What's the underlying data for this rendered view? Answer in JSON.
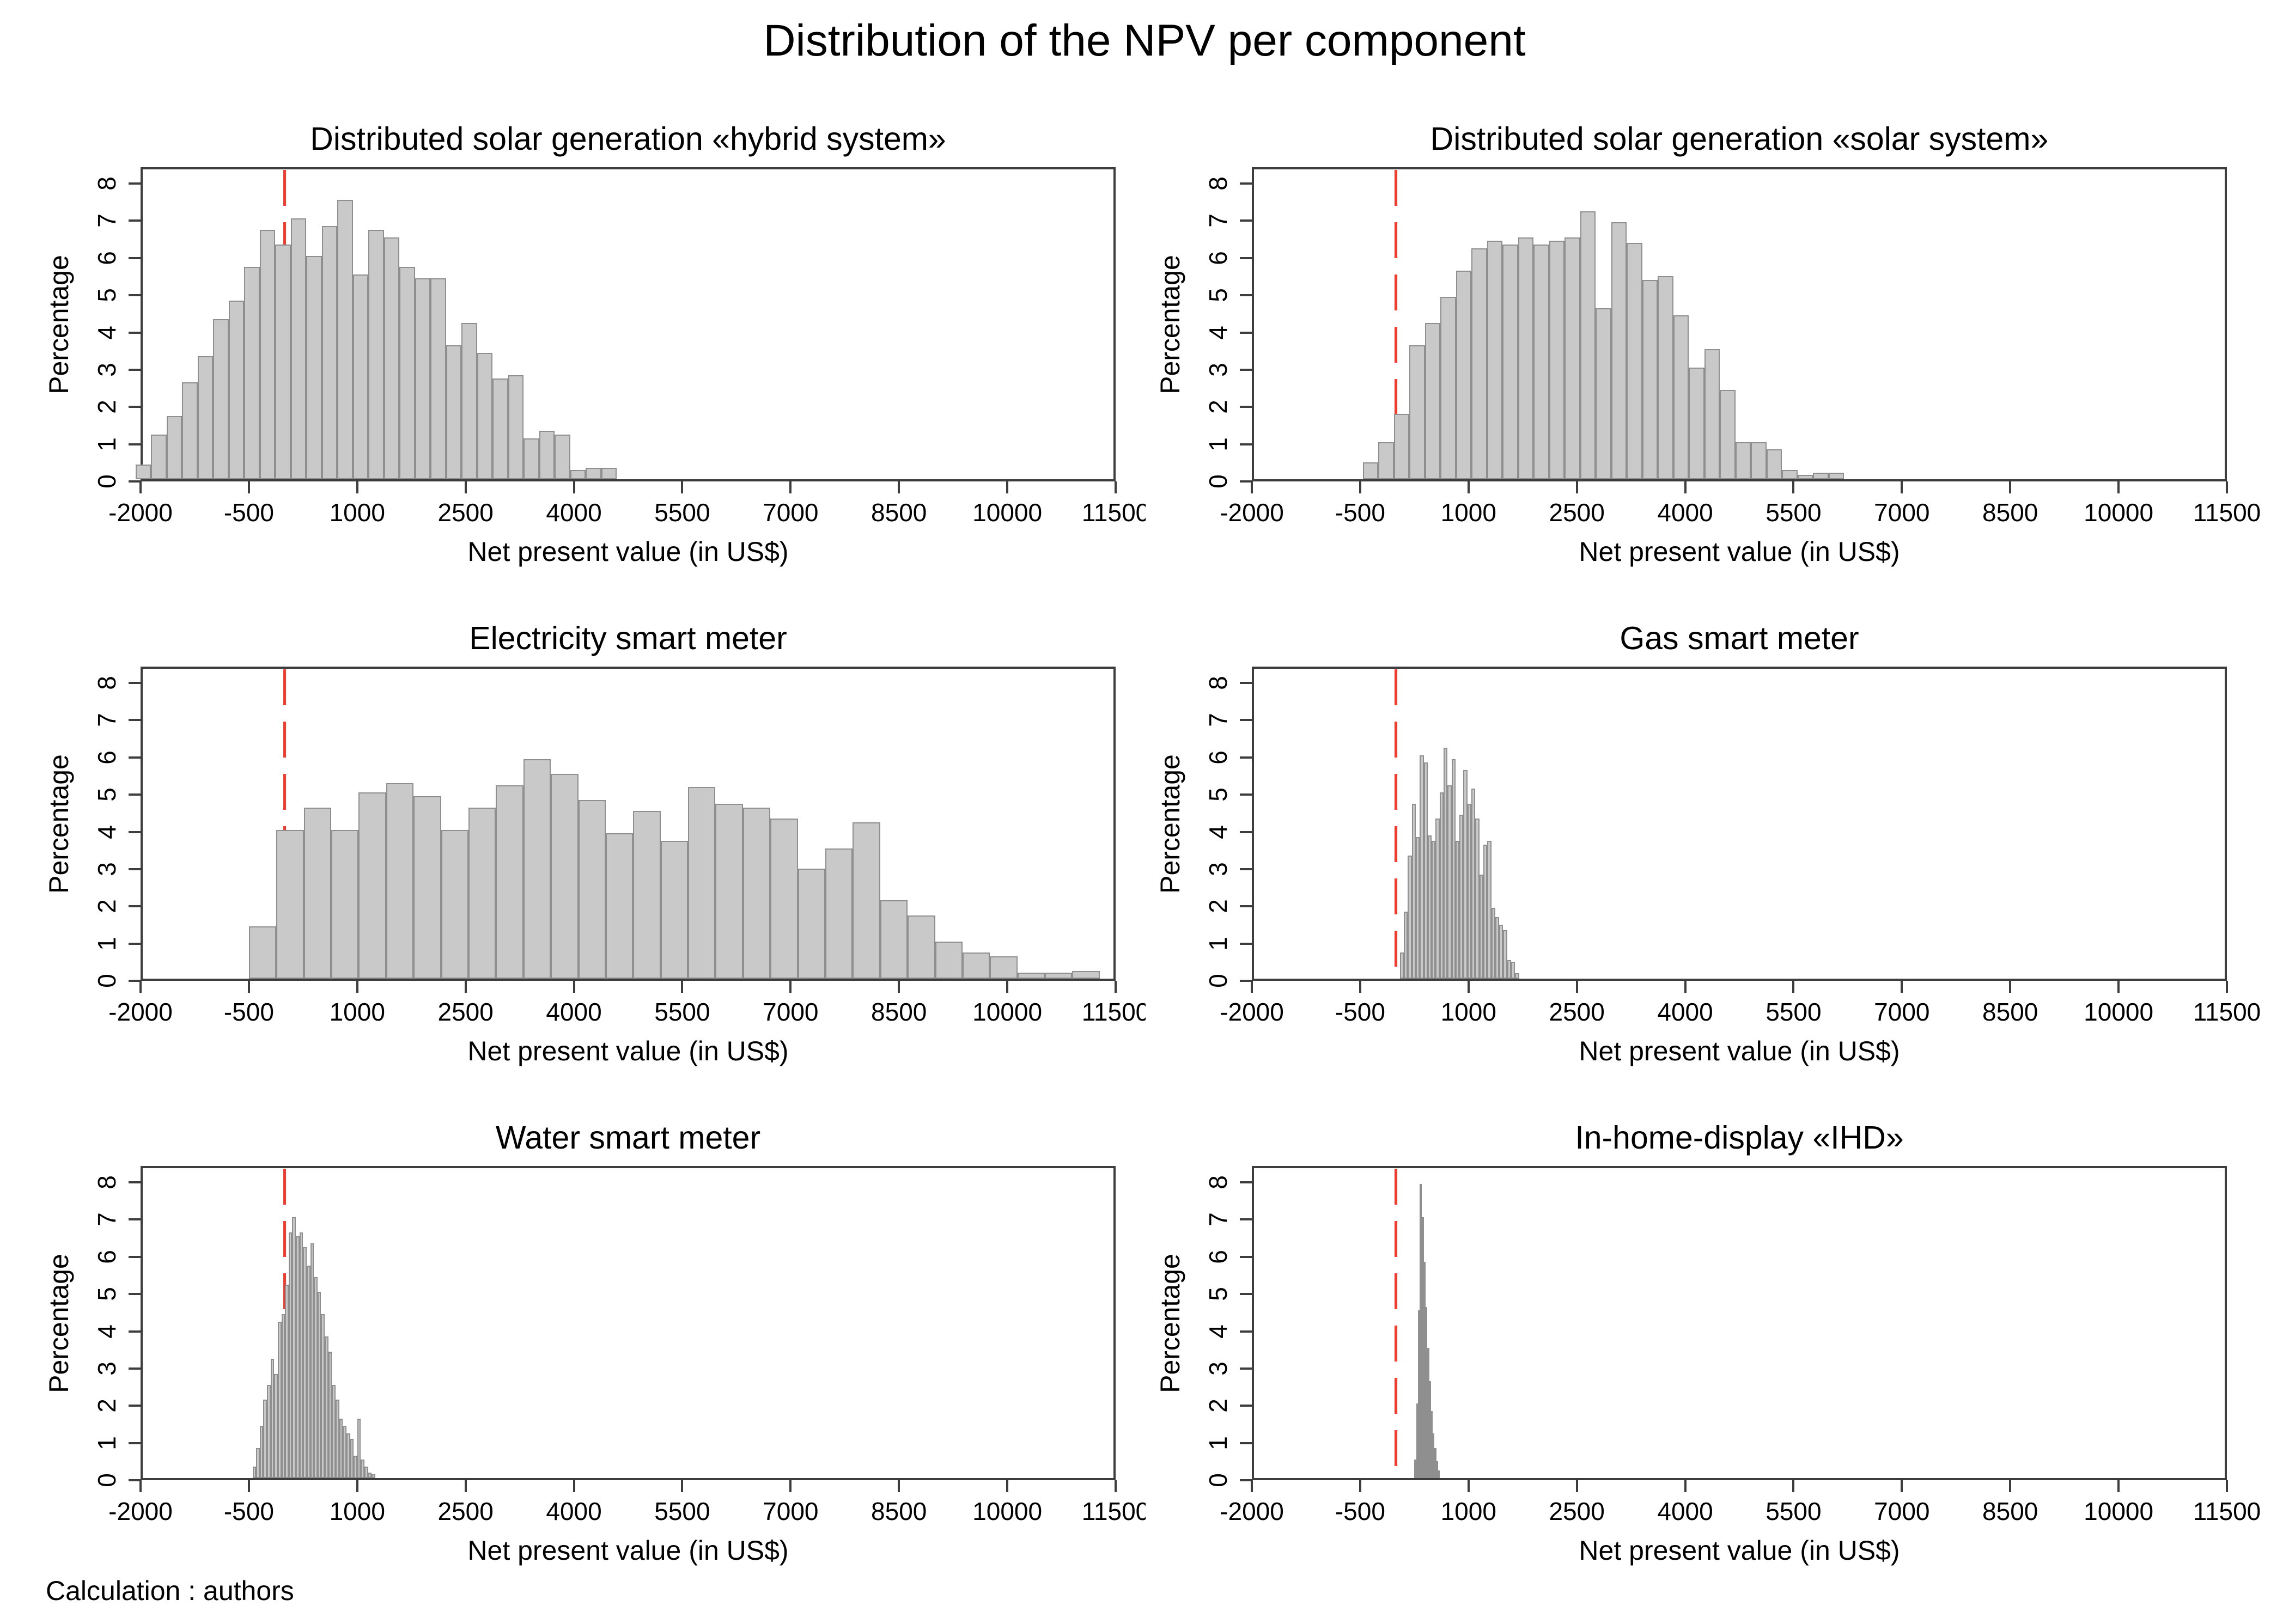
{
  "page": {
    "title": "Distribution of the NPV per component",
    "footer": "Calculation : authors"
  },
  "axes": {
    "x_label": "Net present value (in US$)",
    "y_label": "Percentage",
    "x_ticks": [
      -2000,
      -500,
      1000,
      2500,
      4000,
      5500,
      7000,
      8500,
      10000,
      11500
    ],
    "x_range": [
      -2000,
      11500
    ],
    "y_ticks": [
      0,
      1,
      2,
      3,
      4,
      5,
      6,
      7,
      8
    ],
    "y_range": [
      0,
      8.44
    ],
    "grid": "off",
    "legend": "none",
    "ref_line_x": 0,
    "ref_line_color": "#f83a2c",
    "ref_line_style": "dashed",
    "bar_fill": "#c9c9c9",
    "bar_border": "#8f8f8f",
    "frame_color": "#3d3d3d"
  },
  "chart_data": [
    {
      "type": "bar",
      "subtype": "histogram",
      "title": "Distributed solar generation «hybrid system»",
      "xlabel": "Net present value (in US$)",
      "ylabel": "Percentage",
      "ref_line_x": 0,
      "bin_start": -2070,
      "bin_width": 215,
      "values": [
        0.4,
        1.2,
        1.7,
        2.6,
        3.3,
        4.3,
        4.8,
        5.7,
        6.7,
        6.3,
        7.0,
        6.0,
        6.8,
        7.5,
        5.5,
        6.7,
        6.5,
        5.7,
        5.4,
        5.4,
        3.6,
        4.2,
        3.4,
        2.7,
        2.8,
        1.1,
        1.3,
        1.2,
        0.25,
        0.3,
        0.3
      ],
      "clip_last_x_label": true
    },
    {
      "type": "bar",
      "subtype": "histogram",
      "title": "Distributed solar generation «solar system»",
      "xlabel": "Net present value (in US$)",
      "ylabel": "Percentage",
      "ref_line_x": 0,
      "bin_start": -465,
      "bin_width": 215,
      "values": [
        0.45,
        1.0,
        1.75,
        3.6,
        4.2,
        4.9,
        5.6,
        6.2,
        6.4,
        6.3,
        6.5,
        6.3,
        6.4,
        6.5,
        7.2,
        4.6,
        6.9,
        6.35,
        5.35,
        5.45,
        4.4,
        3.0,
        3.5,
        2.4,
        1.0,
        1.0,
        0.8,
        0.25,
        0.12,
        0.17,
        0.17
      ],
      "clip_last_x_label": false
    },
    {
      "type": "bar",
      "subtype": "histogram",
      "title": "Electricity smart meter",
      "xlabel": "Net present value (in US$)",
      "ylabel": "Percentage",
      "ref_line_x": 0,
      "bin_start": -500,
      "bin_width": 380,
      "values": [
        1.4,
        4.0,
        4.6,
        4.0,
        5.0,
        5.25,
        4.9,
        4.0,
        4.6,
        5.2,
        5.9,
        5.5,
        4.8,
        3.9,
        4.5,
        3.7,
        5.15,
        4.7,
        4.6,
        4.3,
        2.95,
        3.5,
        4.2,
        2.1,
        1.7,
        1.0,
        0.7,
        0.6,
        0.16,
        0.16,
        0.2
      ],
      "clip_last_x_label": true
    },
    {
      "type": "bar",
      "subtype": "histogram",
      "title": "Gas smart meter",
      "xlabel": "Net present value (in US$)",
      "ylabel": "Percentage",
      "ref_line_x": 0,
      "bin_start": 50,
      "bin_width": 55,
      "values": [
        0.7,
        1.8,
        3.3,
        4.7,
        3.8,
        6.0,
        5.8,
        3.85,
        3.7,
        4.3,
        5.0,
        6.2,
        5.2,
        5.9,
        3.7,
        4.4,
        5.6,
        4.7,
        5.1,
        4.3,
        2.8,
        3.6,
        3.7,
        1.9,
        1.65,
        1.45,
        1.3,
        0.5,
        0.45,
        0.15
      ],
      "clip_last_x_label": false
    },
    {
      "type": "bar",
      "subtype": "histogram",
      "title": "Water smart meter",
      "xlabel": "Net present value (in US$)",
      "ylabel": "Percentage",
      "ref_line_x": 0,
      "bin_start": -450,
      "bin_width": 50,
      "values": [
        0.3,
        0.8,
        1.4,
        2.1,
        2.5,
        3.2,
        2.8,
        4.2,
        4.4,
        5.2,
        6.6,
        7.0,
        6.5,
        6.6,
        6.2,
        5.7,
        6.3,
        5.4,
        5.0,
        4.4,
        3.8,
        3.4,
        2.5,
        2.1,
        1.6,
        1.4,
        1.2,
        1.05,
        0.6,
        1.6,
        0.5,
        0.3,
        0.15,
        0.1
      ],
      "clip_last_x_label": true
    },
    {
      "type": "bar",
      "subtype": "histogram",
      "title": "In-home-display «IHD»",
      "xlabel": "Net present value (in US$)",
      "ylabel": "Percentage",
      "ref_line_x": 0,
      "bin_start": 250,
      "bin_width": 25,
      "values": [
        0.5,
        2.0,
        4.5,
        7.9,
        7.0,
        5.8,
        4.6,
        3.5,
        2.6,
        1.8,
        1.2,
        0.8,
        0.45,
        0.2
      ],
      "clip_last_x_label": false
    }
  ]
}
